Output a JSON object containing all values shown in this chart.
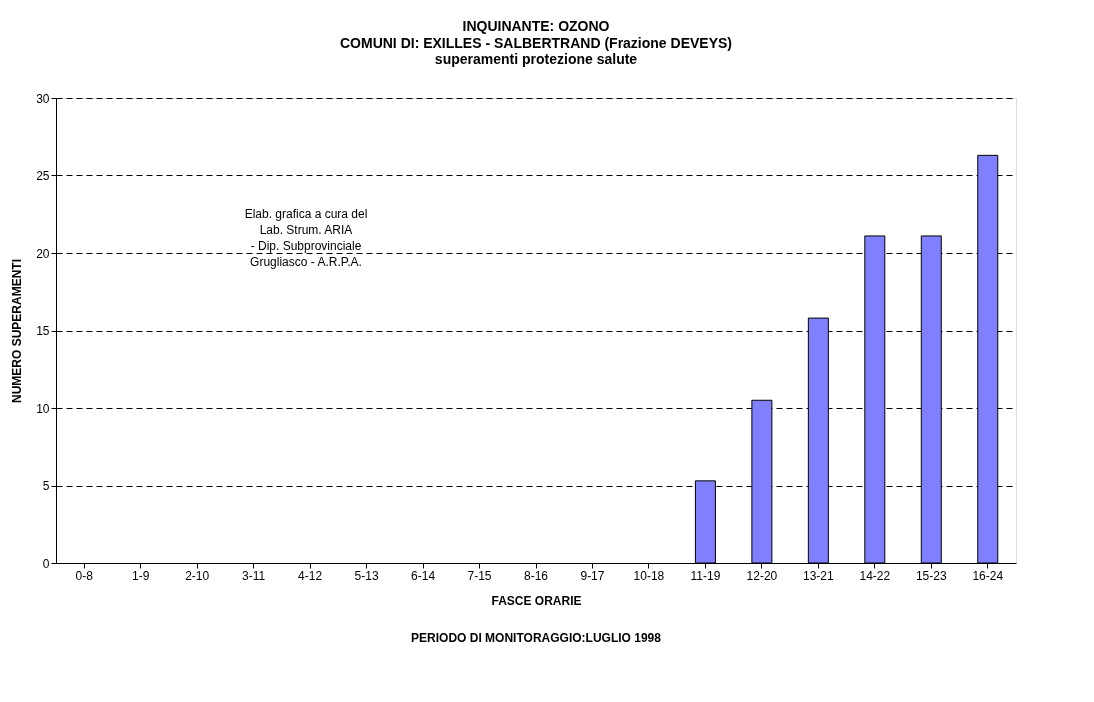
{
  "chart_data": {
    "type": "bar",
    "title": "INQUINANTE: OZONO",
    "subtitle": "COMUNI DI: EXILLES - SALBERTRAND (Frazione DEVEYS)\nsuperamenti protezione salute",
    "xlabel": "FASCE ORARIE",
    "ylabel": "NUMERO SUPERAMENTI",
    "annotations": [
      "PERIODO DI MONITORAGGIO:LUGLIO 1998",
      "Elab. grafica a cura del\nLab. Strum. ARIA\n- Dip. Subprovinciale\nGrugliasco - A.R.P.A."
    ],
    "categories": [
      "0-8",
      "1-9",
      "2-10",
      "3-11",
      "4-12",
      "5-13",
      "6-14",
      "7-15",
      "8-16",
      "9-17",
      "10-18",
      "11-19",
      "12-20",
      "13-21",
      "14-22",
      "15-23",
      "16-24"
    ],
    "values": [
      0,
      0,
      0,
      0,
      0,
      0,
      0,
      0,
      0,
      0,
      0,
      5.3,
      10.5,
      15.8,
      21.1,
      21.1,
      26.3
    ],
    "color": "#8080ff",
    "ylim": [
      0,
      30
    ],
    "yticks": [
      0,
      5,
      10,
      15,
      20,
      25,
      30
    ],
    "grid": "y"
  }
}
